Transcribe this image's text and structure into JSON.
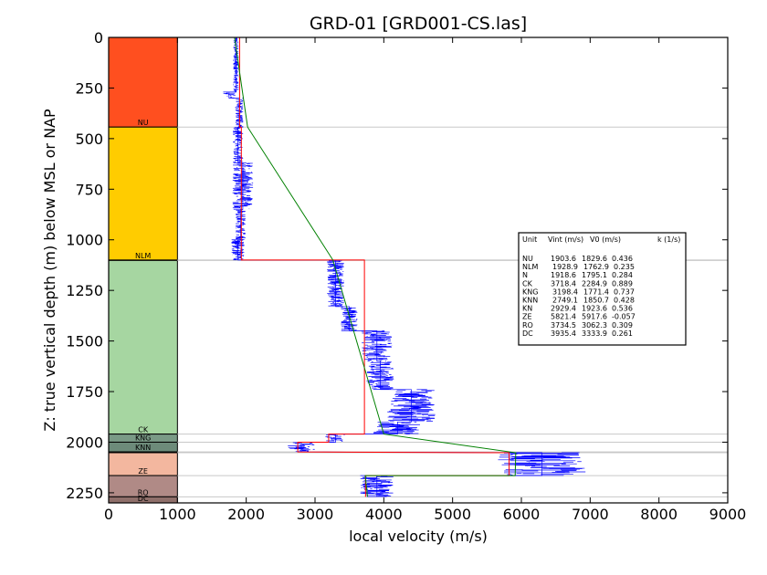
{
  "chart_data": {
    "type": "well-log",
    "title": "GRD-01 [GRD001-CS.las]",
    "xlabel": "local velocity (m/s)",
    "ylabel": "Z: true vertical depth (m) below MSL or NAP",
    "xlim": [
      0,
      9000
    ],
    "ylim": [
      2300,
      0
    ],
    "y_inverted": true,
    "xticks": [
      0,
      1000,
      2000,
      3000,
      4000,
      5000,
      6000,
      7000,
      8000,
      9000
    ],
    "yticks": [
      0,
      250,
      500,
      750,
      1000,
      1250,
      1500,
      1750,
      2000,
      2250
    ],
    "colors": {
      "log": "#0000ff",
      "interval_velocity": "#ff0000",
      "linear_model": "#008000",
      "boundary": "#c8c8c8"
    },
    "units": [
      {
        "name": "NU",
        "top": 0,
        "base": 443,
        "color": "#ff4f1f"
      },
      {
        "name": "NLM",
        "top": 443,
        "base": 1100,
        "color": "#ffcc00"
      },
      {
        "name": "N",
        "top": 1100,
        "base": 1102,
        "color": "#d4e6b0"
      },
      {
        "name": "CK",
        "top": 1102,
        "base": 1960,
        "color": "#a6d6a1"
      },
      {
        "name": "KNG",
        "top": 1960,
        "base": 2000,
        "color": "#7a9a86"
      },
      {
        "name": "KNN",
        "top": 2000,
        "base": 2048,
        "color": "#6d8b7a"
      },
      {
        "name": "KN",
        "top": 2048,
        "base": 2052,
        "color": "#7ea08c"
      },
      {
        "name": "ZE",
        "top": 2052,
        "base": 2165,
        "color": "#f3b79f"
      },
      {
        "name": "RO",
        "top": 2165,
        "base": 2270,
        "color": "#b08a86"
      },
      {
        "name": "DC",
        "top": 2270,
        "base": 2300,
        "color": "#8f6f6a"
      }
    ],
    "unit_label_names": [
      "NU",
      "NLM",
      "CK",
      "KNG",
      "KNN",
      "ZE",
      "RO",
      "DC"
    ],
    "legend": {
      "placement": "right",
      "header": [
        "Unit",
        "Vint (m/s)",
        "V0 (m/s)",
        "k (1/s)"
      ],
      "rows": [
        [
          "NU",
          "1903.6",
          "1829.6",
          "0.436"
        ],
        [
          "NLM",
          "1928.9",
          "1762.9",
          "0.235"
        ],
        [
          "N",
          "1918.6",
          "1795.1",
          "0.284"
        ],
        [
          "CK",
          "3718.4",
          "2284.9",
          "0.889"
        ],
        [
          "KNG",
          "3198.4",
          "1771.4",
          "0.737"
        ],
        [
          "KNN",
          "2749.1",
          "1850.7",
          "0.428"
        ],
        [
          "KN",
          "2929.4",
          "1923.6",
          "0.536"
        ],
        [
          "ZE",
          "5821.4",
          "5917.6",
          "-0.057"
        ],
        [
          "RO",
          "3734.5",
          "3062.3",
          "0.309"
        ],
        [
          "DC",
          "3935.4",
          "3333.9",
          "0.261"
        ]
      ]
    },
    "interval_velocity": [
      {
        "unit": "NU",
        "top": 0,
        "base": 443,
        "vint": 1903.6
      },
      {
        "unit": "NLM",
        "top": 443,
        "base": 1100,
        "vint": 1928.9
      },
      {
        "unit": "CK",
        "top": 1100,
        "base": 1960,
        "vint": 3718.4
      },
      {
        "unit": "KNG",
        "top": 1960,
        "base": 2000,
        "vint": 3198.4
      },
      {
        "unit": "KNN",
        "top": 2000,
        "base": 2048,
        "vint": 2749.1
      },
      {
        "unit": "ZE",
        "top": 2052,
        "base": 2165,
        "vint": 5821.4
      },
      {
        "unit": "RO",
        "top": 2165,
        "base": 2270,
        "vint": 3734.5
      }
    ],
    "velocity_log_segments": [
      {
        "top": 0,
        "base": 270,
        "center": 1850,
        "spread": 80
      },
      {
        "top": 270,
        "base": 300,
        "center": 1750,
        "spread": 200
      },
      {
        "top": 300,
        "base": 443,
        "center": 1900,
        "spread": 120
      },
      {
        "top": 443,
        "base": 620,
        "center": 1880,
        "spread": 150
      },
      {
        "top": 620,
        "base": 850,
        "center": 1950,
        "spread": 300
      },
      {
        "top": 850,
        "base": 1000,
        "center": 1920,
        "spread": 150
      },
      {
        "top": 1000,
        "base": 1100,
        "center": 1880,
        "spread": 200
      },
      {
        "top": 1100,
        "base": 1330,
        "center": 3300,
        "spread": 250
      },
      {
        "top": 1330,
        "base": 1450,
        "center": 3500,
        "spread": 250
      },
      {
        "top": 1450,
        "base": 1600,
        "center": 3900,
        "spread": 450
      },
      {
        "top": 1600,
        "base": 1740,
        "center": 3950,
        "spread": 400
      },
      {
        "top": 1740,
        "base": 1900,
        "center": 4400,
        "spread": 700
      },
      {
        "top": 1900,
        "base": 1960,
        "center": 4200,
        "spread": 700
      },
      {
        "top": 1960,
        "base": 2000,
        "center": 3300,
        "spread": 300
      },
      {
        "top": 2000,
        "base": 2048,
        "center": 2800,
        "spread": 400
      },
      {
        "top": 2052,
        "base": 2165,
        "center": 6300,
        "spread": 1300
      },
      {
        "top": 2165,
        "base": 2270,
        "center": 3900,
        "spread": 500
      }
    ],
    "linear_model": [
      {
        "z": 0,
        "v": 1830
      },
      {
        "z": 443,
        "v": 2020
      },
      {
        "z": 1100,
        "v": 3260
      },
      {
        "z": 1960,
        "v": 4000
      },
      {
        "z": 2052,
        "v": 5918
      },
      {
        "z": 2165,
        "v": 5910
      },
      {
        "z": 2165,
        "v": 3730
      },
      {
        "z": 2270,
        "v": 3763
      }
    ]
  }
}
